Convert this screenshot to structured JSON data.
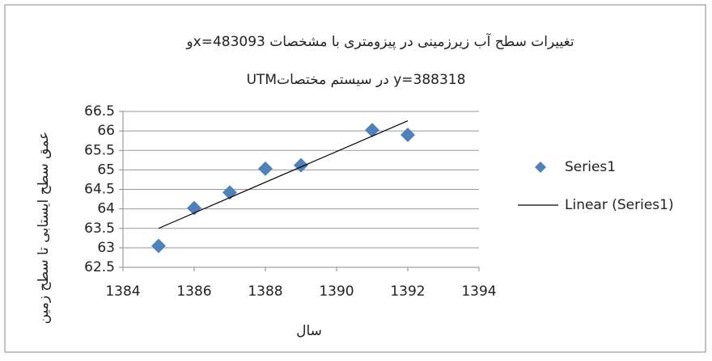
{
  "chart_data": {
    "type": "scatter",
    "title": [
      "تغییرات سطح آب زیرزمینی در پیزومتری با مشخصات  x=483093و",
      "y=388318  در سیستم مختصاتUTM"
    ],
    "y_label": "عمق سطح ایستابی تا سطح زمین",
    "x_label": "سال",
    "xlim": [
      1384,
      1394
    ],
    "xticks": [
      1384,
      1386,
      1388,
      1390,
      1392,
      1394
    ],
    "ylim": [
      62.5,
      66.5
    ],
    "yticks": [
      62.5,
      63,
      63.5,
      64,
      64.5,
      65,
      65.5,
      66,
      66.5
    ],
    "grid": true,
    "legend": "right",
    "series": [
      {
        "name": "Series1",
        "color": "#4f81bd",
        "marker": "diamond",
        "x": [
          1385,
          1386,
          1387,
          1388,
          1389,
          1391,
          1392
        ],
        "values": [
          63.05,
          64.02,
          64.42,
          65.03,
          65.12,
          66.02,
          65.9
        ]
      },
      {
        "name": "Linear (Series1)",
        "color": "#000000",
        "marker": "line",
        "x": [
          1385,
          1392
        ],
        "values": [
          63.5,
          66.26
        ]
      }
    ]
  }
}
